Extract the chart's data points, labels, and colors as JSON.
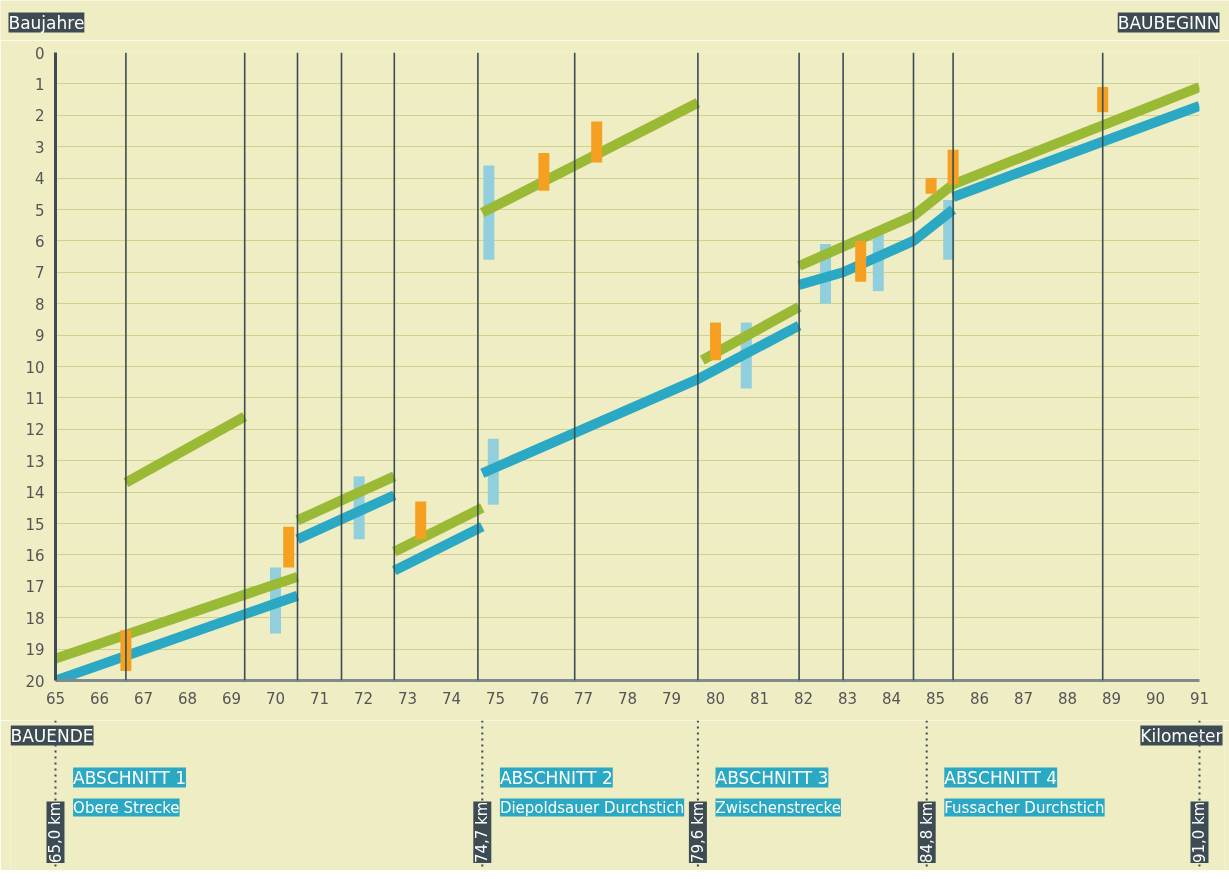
{
  "chart_data": {
    "type": "line",
    "ylabel": "Baujahre",
    "xlabel": "Kilometer",
    "xlim": [
      65,
      91
    ],
    "xticks": [
      65,
      66,
      67,
      68,
      69,
      70,
      71,
      72,
      73,
      74,
      75,
      76,
      77,
      78,
      79,
      80,
      81,
      82,
      83,
      84,
      85,
      86,
      87,
      88,
      89,
      90,
      91
    ],
    "ylim": [
      20,
      0
    ],
    "yticks": [
      0,
      1,
      2,
      3,
      4,
      5,
      6,
      7,
      8,
      9,
      10,
      11,
      12,
      13,
      14,
      15,
      16,
      17,
      18,
      19,
      20
    ],
    "grid": "y",
    "series": [
      {
        "type": "bar",
        "color": "#92cfdc",
        "x": [
          70.0,
          71.9,
          74.85,
          74.95,
          80.7,
          82.5,
          83.7,
          85.3
        ],
        "base": [
          16.4,
          13.5,
          3.6,
          12.3,
          8.6,
          6.1,
          5.7,
          4.7
        ],
        "values": [
          2.1,
          2.0,
          3.0,
          2.1,
          2.1,
          1.9,
          1.9,
          1.9
        ]
      },
      {
        "color": "#9ab934",
        "x": [
          65.0,
          70.5
        ],
        "values": [
          19.3,
          16.7
        ]
      },
      {
        "color": "#9ab934",
        "x": [
          66.6,
          69.3
        ],
        "values": [
          13.7,
          11.6
        ]
      },
      {
        "color": "#9ab934",
        "x": [
          70.5,
          72.7
        ],
        "values": [
          14.9,
          13.5
        ]
      },
      {
        "color": "#9ab934",
        "x": [
          72.7,
          74.7
        ],
        "values": [
          15.9,
          14.5
        ]
      },
      {
        "color": "#9ab934",
        "x": [
          74.7,
          79.6
        ],
        "values": [
          5.1,
          1.6
        ]
      },
      {
        "color": "#9ab934",
        "x": [
          79.7,
          81.9
        ],
        "values": [
          9.8,
          8.1
        ]
      },
      {
        "color": "#9ab934",
        "x": [
          81.9,
          84.5,
          85.4,
          91.0
        ],
        "values": [
          6.8,
          5.2,
          4.2,
          1.1
        ]
      },
      {
        "color": "#2aa8c4",
        "x": [
          65.0,
          70.5
        ],
        "values": [
          20.0,
          17.3
        ]
      },
      {
        "color": "#2aa8c4",
        "x": [
          70.5,
          72.7
        ],
        "values": [
          15.5,
          14.1
        ]
      },
      {
        "color": "#2aa8c4",
        "x": [
          72.7,
          74.7
        ],
        "values": [
          16.5,
          15.1
        ]
      },
      {
        "color": "#2aa8c4",
        "x": [
          74.7,
          79.6,
          81.9
        ],
        "values": [
          13.4,
          10.4,
          8.7
        ]
      },
      {
        "color": "#2aa8c4",
        "x": [
          81.9,
          82.9,
          84.5,
          85.4
        ],
        "values": [
          7.4,
          7.0,
          6.0,
          5.0
        ]
      },
      {
        "color": "#2aa8c4",
        "x": [
          85.4,
          91.0
        ],
        "values": [
          4.6,
          1.7
        ]
      },
      {
        "type": "bar",
        "color": "#f5a020",
        "x": [
          66.6,
          70.3,
          73.3,
          76.1,
          77.3,
          80.0,
          83.3,
          84.9,
          85.4,
          88.8
        ],
        "base": [
          18.4,
          15.1,
          14.3,
          3.2,
          2.2,
          8.6,
          6.0,
          4.0,
          3.1,
          1.1
        ],
        "values": [
          1.3,
          1.3,
          1.2,
          1.2,
          1.3,
          1.2,
          1.3,
          0.5,
          1.1,
          0.8
        ]
      }
    ],
    "ref_lines": [
      {
        "axis": "x",
        "value": 66.6
      },
      {
        "axis": "x",
        "value": 69.3
      },
      {
        "axis": "x",
        "value": 70.5
      },
      {
        "axis": "x",
        "value": 71.5
      },
      {
        "axis": "x",
        "value": 72.7
      },
      {
        "axis": "x",
        "value": 74.6
      },
      {
        "axis": "x",
        "value": 76.8
      },
      {
        "axis": "x",
        "value": 79.6
      },
      {
        "axis": "x",
        "value": 81.9
      },
      {
        "axis": "x",
        "value": 82.9
      },
      {
        "axis": "x",
        "value": 84.5
      },
      {
        "axis": "x",
        "value": 85.4
      },
      {
        "axis": "x",
        "value": 88.8
      },
      {
        "axis": "x",
        "value": 65.0,
        "label": "65,0 km",
        "line_style": "dotted"
      },
      {
        "axis": "x",
        "value": 74.7,
        "label": "74,7 km",
        "line_style": "dotted"
      },
      {
        "axis": "x",
        "value": 79.6,
        "label": "79,6 km",
        "line_style": "dotted"
      },
      {
        "axis": "x",
        "value": 84.8,
        "label": "84,8 km",
        "line_style": "dotted"
      },
      {
        "axis": "x",
        "value": 91.0,
        "label": "91,0 km",
        "line_style": "dotted"
      }
    ],
    "annotations": [
      "BAUBEGINN",
      "BAUENDE",
      "ABSCHNITT 1",
      "Obere Strecke",
      "ABSCHNITT 2",
      "Diepoldsauer Durchstich",
      "ABSCHNITT 3",
      "Zwischenstrecke",
      "ABSCHNITT 4",
      "Fussacher Durchstich"
    ]
  }
}
